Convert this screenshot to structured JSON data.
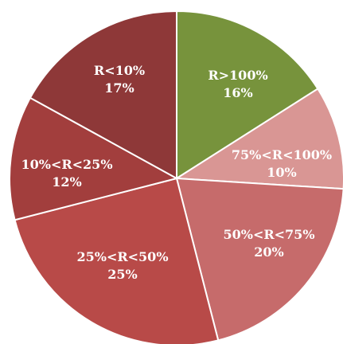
{
  "chart_data": {
    "type": "pie",
    "title": "",
    "legend": "none",
    "start_angle_deg": 0,
    "direction": "clockwise",
    "slices": [
      {
        "name": "R>100%",
        "percent_label": "16%",
        "value": 16,
        "color": "#77933C"
      },
      {
        "name": "75%<R<100%",
        "percent_label": "10%",
        "value": 10,
        "color": "#D99694"
      },
      {
        "name": "50%<R<75%",
        "percent_label": "20%",
        "value": 20,
        "color": "#C66B6B"
      },
      {
        "name": "25%<R<50%",
        "percent_label": "25%",
        "value": 25,
        "color": "#B84A48"
      },
      {
        "name": "10%<R<25%",
        "percent_label": "12%",
        "value": 12,
        "color": "#A23E3D"
      },
      {
        "name": "R<10%",
        "percent_label": "17%",
        "value": 17,
        "color": "#8E3838"
      }
    ]
  }
}
